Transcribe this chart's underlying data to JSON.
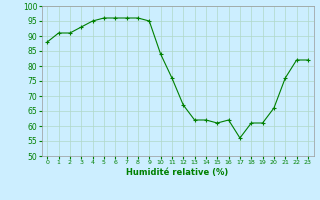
{
  "x": [
    0,
    1,
    2,
    3,
    4,
    5,
    6,
    7,
    8,
    9,
    10,
    11,
    12,
    13,
    14,
    15,
    16,
    17,
    18,
    19,
    20,
    21,
    22,
    23
  ],
  "y": [
    88,
    91,
    91,
    93,
    95,
    96,
    96,
    96,
    96,
    95,
    84,
    76,
    67,
    62,
    62,
    61,
    62,
    56,
    61,
    61,
    66,
    76,
    82,
    82
  ],
  "ylim": [
    50,
    100
  ],
  "yticks": [
    50,
    55,
    60,
    65,
    70,
    75,
    80,
    85,
    90,
    95,
    100
  ],
  "xlabel": "Humidité relative (%)",
  "line_color": "#008000",
  "marker": "+",
  "bg_color": "#cceeff",
  "grid_color": "#b0d8c8",
  "tick_color": "#008000"
}
